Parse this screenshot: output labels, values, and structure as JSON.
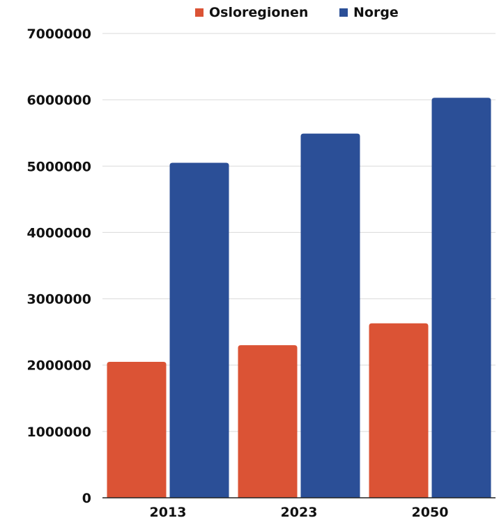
{
  "chart_data": {
    "type": "bar",
    "title": "",
    "xlabel": "",
    "ylabel": "",
    "categories": [
      "2013",
      "2023",
      "2050"
    ],
    "series": [
      {
        "name": "Osloregionen",
        "color": "#db5335",
        "values": [
          2050000,
          2300000,
          2630000
        ]
      },
      {
        "name": "Norge",
        "color": "#2b4f97",
        "values": [
          5050000,
          5490000,
          6030000
        ]
      }
    ],
    "ylim": [
      0,
      7000000
    ],
    "yticks": [
      "0",
      "1000000",
      "2000000",
      "3000000",
      "4000000",
      "5000000",
      "6000000",
      "7000000"
    ],
    "grid": true,
    "legend_position": "top"
  }
}
